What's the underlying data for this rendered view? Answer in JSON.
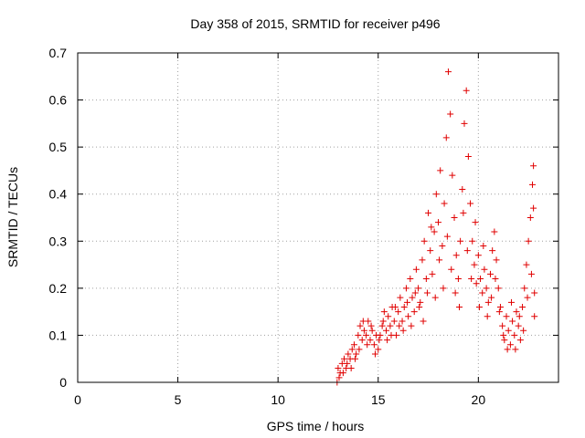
{
  "colors": {
    "series": "#e00000",
    "axis": "#000000",
    "grid": "#a0a0a0",
    "background": "#ffffff"
  },
  "chart_data": {
    "type": "scatter",
    "title": "Day 358 of 2015, SRMTID for receiver p496",
    "xlabel": "GPS time / hours",
    "ylabel": "SRMTID / TECUs",
    "xlim": [
      0,
      24
    ],
    "ylim": [
      0,
      0.7
    ],
    "xticks": [
      0,
      5,
      10,
      15,
      20
    ],
    "xtick_labels": [
      "0",
      "5",
      "10",
      "15",
      "20"
    ],
    "yticks": [
      0,
      0.1,
      0.2,
      0.3,
      0.4,
      0.5,
      0.6,
      0.7
    ],
    "ytick_labels": [
      "0",
      "0.1",
      "0.2",
      "0.3",
      "0.4",
      "0.5",
      "0.6",
      "0.7"
    ],
    "grid": true,
    "marker": "+",
    "series": [
      {
        "name": "SRMTID",
        "points": [
          [
            12.95,
            0.0
          ],
          [
            13.0,
            0.03
          ],
          [
            13.1,
            0.02
          ],
          [
            13.2,
            0.04
          ],
          [
            13.3,
            0.05
          ],
          [
            13.4,
            0.03
          ],
          [
            13.5,
            0.06
          ],
          [
            13.6,
            0.05
          ],
          [
            13.7,
            0.07
          ],
          [
            13.8,
            0.08
          ],
          [
            13.9,
            0.06
          ],
          [
            14.0,
            0.1
          ],
          [
            14.1,
            0.12
          ],
          [
            14.2,
            0.09
          ],
          [
            14.3,
            0.11
          ],
          [
            14.4,
            0.1
          ],
          [
            14.5,
            0.13
          ],
          [
            14.6,
            0.09
          ],
          [
            14.7,
            0.11
          ],
          [
            14.8,
            0.08
          ],
          [
            14.9,
            0.1
          ],
          [
            15.0,
            0.07
          ],
          [
            15.1,
            0.1
          ],
          [
            15.2,
            0.12
          ],
          [
            15.3,
            0.15
          ],
          [
            15.4,
            0.11
          ],
          [
            15.5,
            0.14
          ],
          [
            15.6,
            0.12
          ],
          [
            15.7,
            0.16
          ],
          [
            15.8,
            0.13
          ],
          [
            15.9,
            0.1
          ],
          [
            16.0,
            0.15
          ],
          [
            16.1,
            0.18
          ],
          [
            16.2,
            0.13
          ],
          [
            16.3,
            0.16
          ],
          [
            16.4,
            0.2
          ],
          [
            16.5,
            0.14
          ],
          [
            16.6,
            0.22
          ],
          [
            16.7,
            0.18
          ],
          [
            16.8,
            0.15
          ],
          [
            16.9,
            0.24
          ],
          [
            17.0,
            0.2
          ],
          [
            17.1,
            0.17
          ],
          [
            17.2,
            0.26
          ],
          [
            17.3,
            0.3
          ],
          [
            17.4,
            0.22
          ],
          [
            17.5,
            0.36
          ],
          [
            17.6,
            0.28
          ],
          [
            17.7,
            0.23
          ],
          [
            17.8,
            0.32
          ],
          [
            17.9,
            0.4
          ],
          [
            18.0,
            0.34
          ],
          [
            18.1,
            0.45
          ],
          [
            18.2,
            0.29
          ],
          [
            18.3,
            0.38
          ],
          [
            18.4,
            0.52
          ],
          [
            18.5,
            0.66
          ],
          [
            18.6,
            0.57
          ],
          [
            18.7,
            0.44
          ],
          [
            18.8,
            0.35
          ],
          [
            18.9,
            0.27
          ],
          [
            19.0,
            0.22
          ],
          [
            19.1,
            0.3
          ],
          [
            19.2,
            0.41
          ],
          [
            19.3,
            0.55
          ],
          [
            19.4,
            0.62
          ],
          [
            19.5,
            0.48
          ],
          [
            19.6,
            0.38
          ],
          [
            19.7,
            0.3
          ],
          [
            19.8,
            0.25
          ],
          [
            19.9,
            0.21
          ],
          [
            20.0,
            0.27
          ],
          [
            20.1,
            0.22
          ],
          [
            20.2,
            0.19
          ],
          [
            20.3,
            0.24
          ],
          [
            20.4,
            0.2
          ],
          [
            20.5,
            0.17
          ],
          [
            20.6,
            0.23
          ],
          [
            20.7,
            0.28
          ],
          [
            20.8,
            0.32
          ],
          [
            20.9,
            0.26
          ],
          [
            21.0,
            0.2
          ],
          [
            21.1,
            0.16
          ],
          [
            21.2,
            0.12
          ],
          [
            21.3,
            0.09
          ],
          [
            21.4,
            0.14
          ],
          [
            21.5,
            0.11
          ],
          [
            21.6,
            0.08
          ],
          [
            21.7,
            0.13
          ],
          [
            21.8,
            0.1
          ],
          [
            21.9,
            0.15
          ],
          [
            22.0,
            0.12
          ],
          [
            22.1,
            0.09
          ],
          [
            22.2,
            0.16
          ],
          [
            22.3,
            0.2
          ],
          [
            22.4,
            0.25
          ],
          [
            22.5,
            0.3
          ],
          [
            22.6,
            0.35
          ],
          [
            22.7,
            0.42
          ],
          [
            22.75,
            0.46
          ],
          [
            22.8,
            0.14
          ],
          [
            13.05,
            0.01
          ],
          [
            13.25,
            0.02
          ],
          [
            13.45,
            0.04
          ],
          [
            13.65,
            0.03
          ],
          [
            13.85,
            0.05
          ],
          [
            14.05,
            0.07
          ],
          [
            14.25,
            0.13
          ],
          [
            14.45,
            0.08
          ],
          [
            14.65,
            0.12
          ],
          [
            14.85,
            0.06
          ],
          [
            15.05,
            0.09
          ],
          [
            15.25,
            0.13
          ],
          [
            15.45,
            0.09
          ],
          [
            15.65,
            0.1
          ],
          [
            15.85,
            0.16
          ],
          [
            16.05,
            0.12
          ],
          [
            16.25,
            0.11
          ],
          [
            16.45,
            0.17
          ],
          [
            16.65,
            0.12
          ],
          [
            16.85,
            0.19
          ],
          [
            17.05,
            0.16
          ],
          [
            17.25,
            0.13
          ],
          [
            17.45,
            0.19
          ],
          [
            17.65,
            0.33
          ],
          [
            17.85,
            0.18
          ],
          [
            18.05,
            0.26
          ],
          [
            18.25,
            0.2
          ],
          [
            18.45,
            0.31
          ],
          [
            18.65,
            0.24
          ],
          [
            18.85,
            0.19
          ],
          [
            19.05,
            0.16
          ],
          [
            19.25,
            0.36
          ],
          [
            19.45,
            0.28
          ],
          [
            19.65,
            0.22
          ],
          [
            19.85,
            0.34
          ],
          [
            20.05,
            0.16
          ],
          [
            20.25,
            0.29
          ],
          [
            20.45,
            0.14
          ],
          [
            20.65,
            0.18
          ],
          [
            20.85,
            0.22
          ],
          [
            21.05,
            0.15
          ],
          [
            21.25,
            0.1
          ],
          [
            21.45,
            0.07
          ],
          [
            21.65,
            0.17
          ],
          [
            21.85,
            0.07
          ],
          [
            22.05,
            0.14
          ],
          [
            22.25,
            0.11
          ],
          [
            22.45,
            0.18
          ],
          [
            22.65,
            0.23
          ],
          [
            22.75,
            0.37
          ],
          [
            22.8,
            0.19
          ]
        ]
      }
    ]
  }
}
